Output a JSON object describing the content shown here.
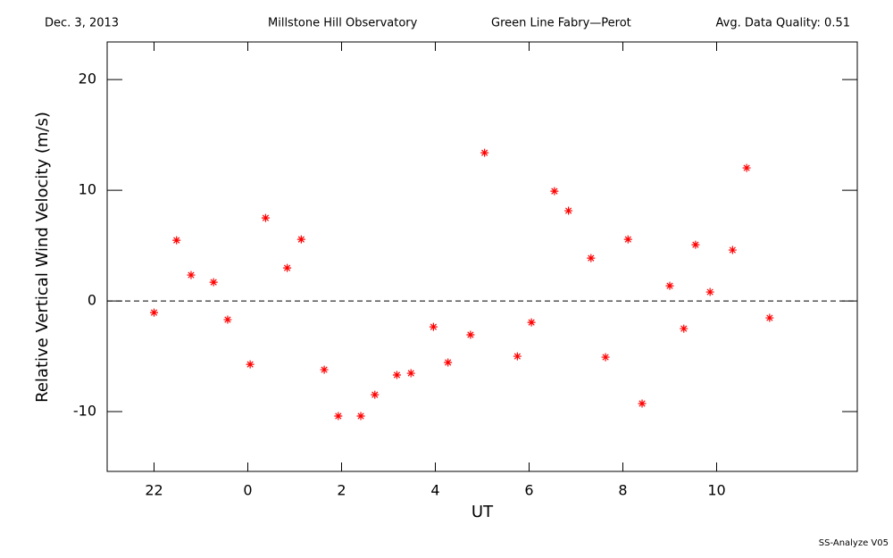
{
  "chart_data": {
    "type": "scatter",
    "header": [
      "Dec. 3, 2013",
      "Millstone Hill Observatory",
      "Green Line Fabry—Perot",
      "Avg. Data Quality: 0.51"
    ],
    "footer": "SS-Analyze V05",
    "xlabel": "UT",
    "ylabel": "Relative Vertical Wind Velocity (m/s)",
    "xlim": [
      21,
      37
    ],
    "ylim": [
      -15.4,
      23.4
    ],
    "xticks": [
      22,
      {
        "value": 24,
        "label": "0"
      },
      {
        "value": 26,
        "label": "2"
      },
      {
        "value": 28,
        "label": "4"
      },
      {
        "value": 30,
        "label": "6"
      },
      {
        "value": 32,
        "label": "8"
      },
      {
        "value": 34,
        "label": "10"
      }
    ],
    "yticks": [
      -10,
      0,
      10,
      20
    ],
    "reference_line": 0,
    "series": [
      {
        "name": "Vertical wind",
        "color": "#ff0000",
        "x": [
          22.0,
          22.48,
          22.79,
          23.27,
          23.57,
          24.05,
          24.38,
          24.84,
          25.14,
          25.63,
          25.93,
          26.41,
          26.71,
          27.18,
          27.48,
          27.96,
          28.27,
          28.75,
          29.05,
          29.75,
          30.05,
          30.54,
          30.84,
          31.32,
          31.63,
          32.11,
          32.41,
          33.0,
          33.3,
          33.55,
          33.86,
          34.34,
          34.64,
          35.13
        ],
        "values": [
          -1.05,
          5.48,
          2.34,
          1.69,
          -1.69,
          -5.73,
          7.5,
          2.98,
          5.56,
          -6.21,
          -10.4,
          -10.4,
          -8.47,
          -6.69,
          -6.53,
          -2.34,
          -5.56,
          -3.06,
          13.39,
          -5.0,
          -1.94,
          9.92,
          8.15,
          3.87,
          -5.08,
          5.56,
          -9.27,
          1.37,
          -2.5,
          5.08,
          0.81,
          4.6,
          12.02,
          -1.53
        ]
      }
    ]
  }
}
